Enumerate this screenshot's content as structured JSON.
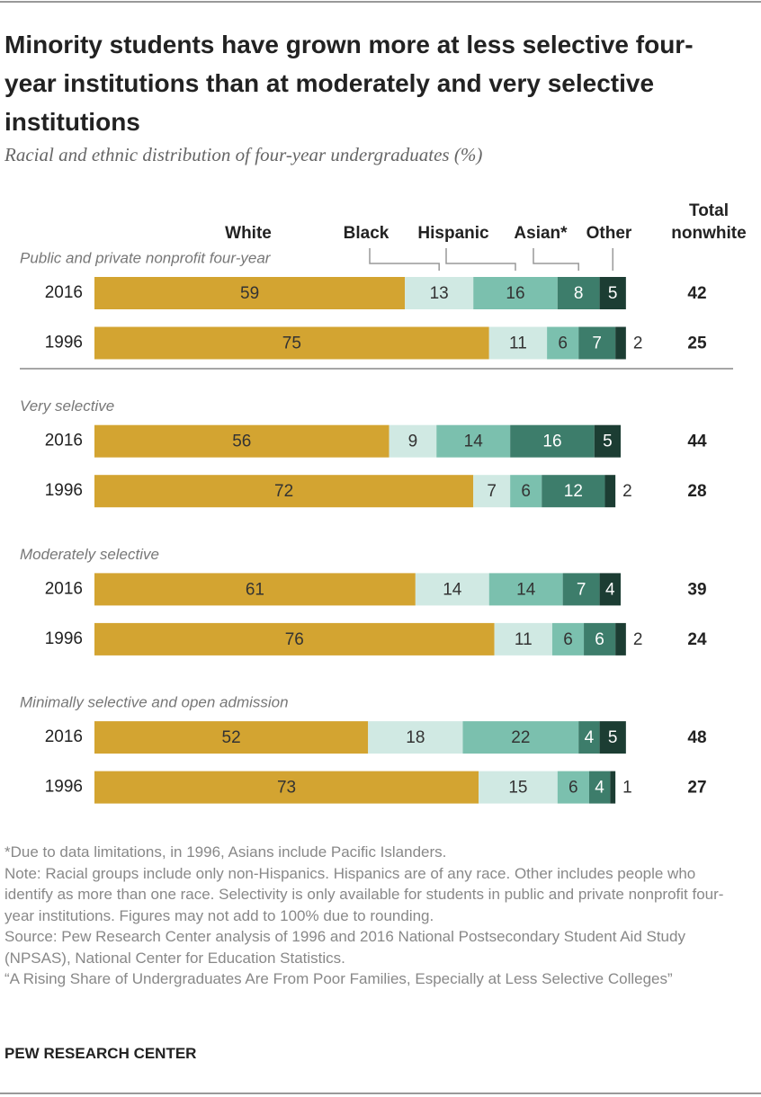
{
  "chart_data": {
    "type": "stacked-bar",
    "title": "Minority students have grown more at less selective four-year institutions than at moderately and very selective institutions",
    "subtitle": "Racial and ethnic distribution of four-year undergraduates (%)",
    "series": [
      {
        "name": "White",
        "color": "#d3a431"
      },
      {
        "name": "Black",
        "color": "#d0e9e3"
      },
      {
        "name": "Hispanic",
        "color": "#7bc0ae"
      },
      {
        "name": "Asian*",
        "color": "#3d7d6b"
      },
      {
        "name": "Other",
        "color": "#1c3d33"
      }
    ],
    "total_label": "Total nonwhite",
    "groups": [
      {
        "label": "Public and private nonprofit four-year",
        "rows": [
          {
            "year": "2016",
            "values": [
              59,
              13,
              16,
              8,
              5
            ],
            "total": 42
          },
          {
            "year": "1996",
            "values": [
              75,
              11,
              6,
              7,
              2
            ],
            "total": 25
          }
        ]
      },
      {
        "label": "Very selective",
        "rows": [
          {
            "year": "2016",
            "values": [
              56,
              9,
              14,
              16,
              5
            ],
            "total": 44
          },
          {
            "year": "1996",
            "values": [
              72,
              7,
              6,
              12,
              2
            ],
            "total": 28
          }
        ]
      },
      {
        "label": "Moderately selective",
        "rows": [
          {
            "year": "2016",
            "values": [
              61,
              14,
              14,
              7,
              4
            ],
            "total": 39
          },
          {
            "year": "1996",
            "values": [
              76,
              11,
              6,
              6,
              2
            ],
            "total": 24
          }
        ]
      },
      {
        "label": "Minimally selective and open admission",
        "rows": [
          {
            "year": "2016",
            "values": [
              52,
              18,
              22,
              4,
              5
            ],
            "total": 48
          },
          {
            "year": "1996",
            "values": [
              73,
              15,
              6,
              4,
              1
            ],
            "total": 27
          }
        ]
      }
    ],
    "notes": [
      "*Due to data limitations, in 1996, Asians include Pacific Islanders.",
      "Note: Racial groups include only non-Hispanics. Hispanics are of any race. Other includes people who identify as more than one race. Selectivity is only available for students in public and private nonprofit four-year institutions. Figures may not add to 100% due to rounding.",
      "Source: Pew Research Center analysis of 1996 and 2016 National Postsecondary Student Aid Study (NPSAS), National Center for Education Statistics.",
      "“A Rising Share of Undergraduates Are From Poor Families, Especially at Less Selective Colleges”"
    ],
    "credit": "PEW RESEARCH CENTER"
  }
}
